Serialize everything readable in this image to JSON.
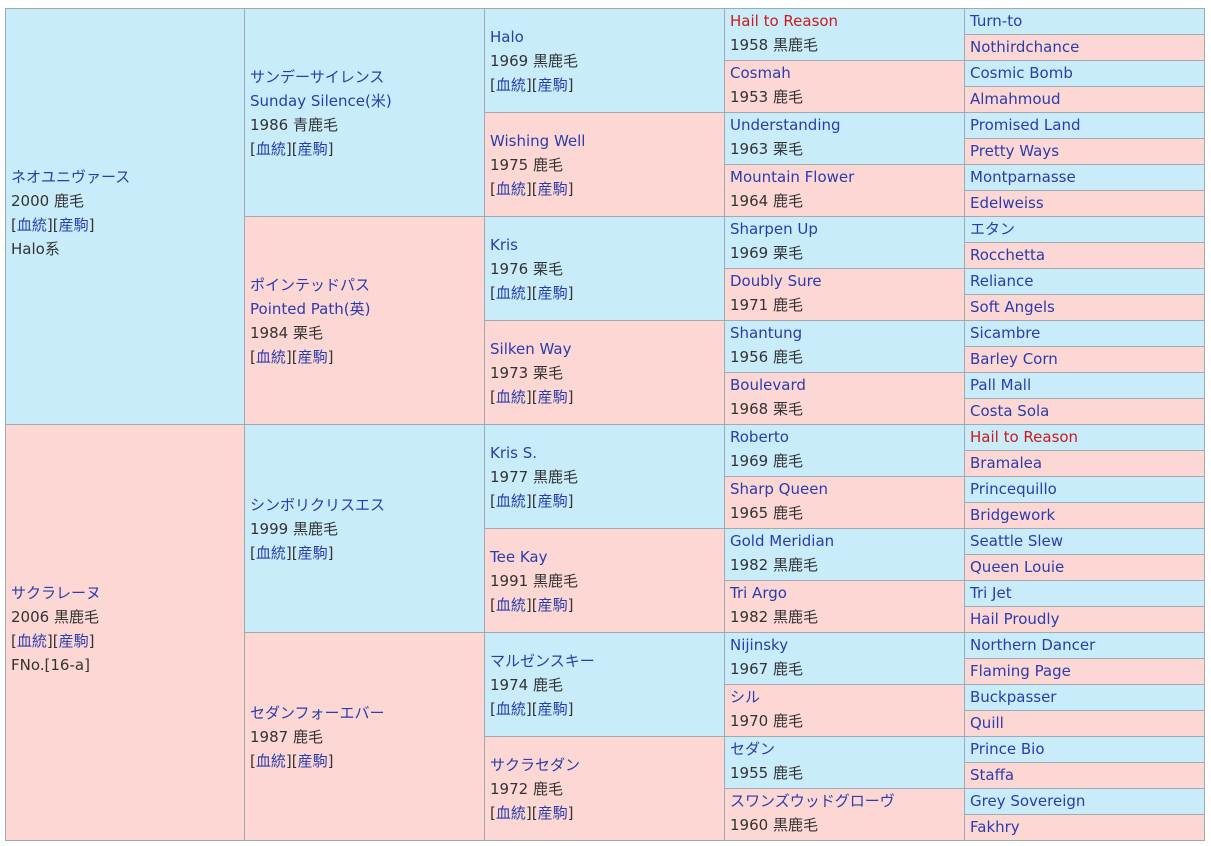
{
  "sire": {
    "name": "ネオユニヴァース",
    "birth": "2000 鹿毛",
    "link_bloodline": "血統",
    "link_offspring": "産駒",
    "line": "Halo系"
  },
  "dam": {
    "name": "サクラレーヌ",
    "birth": "2006 黒鹿毛",
    "link_bloodline": "血統",
    "link_offspring": "産駒",
    "family": "FNo.[16-a]"
  },
  "gen2": [
    {
      "name": "サンデーサイレンス",
      "name_en": "Sunday Silence(米)",
      "birth": "1986 青鹿毛",
      "link_bloodline": "血統",
      "link_offspring": "産駒"
    },
    {
      "name": "ポインテッドパス",
      "name_en": "Pointed Path(英)",
      "birth": "1984 栗毛",
      "link_bloodline": "血統",
      "link_offspring": "産駒"
    },
    {
      "name": "シンボリクリスエス",
      "birth": "1999 黒鹿毛",
      "link_bloodline": "血統",
      "link_offspring": "産駒"
    },
    {
      "name": "セダンフォーエバー",
      "birth": "1987 鹿毛",
      "link_bloodline": "血統",
      "link_offspring": "産駒"
    }
  ],
  "gen3": [
    {
      "name": "Halo",
      "birth": "1969 黒鹿毛",
      "link_bloodline": "血統",
      "link_offspring": "産駒"
    },
    {
      "name": "Wishing Well",
      "birth": "1975 鹿毛",
      "link_bloodline": "血統",
      "link_offspring": "産駒"
    },
    {
      "name": "Kris",
      "birth": "1976 栗毛",
      "link_bloodline": "血統",
      "link_offspring": "産駒"
    },
    {
      "name": "Silken Way",
      "birth": "1973 栗毛",
      "link_bloodline": "血統",
      "link_offspring": "産駒"
    },
    {
      "name": "Kris S.",
      "birth": "1977 黒鹿毛",
      "link_bloodline": "血統",
      "link_offspring": "産駒"
    },
    {
      "name": "Tee Kay",
      "birth": "1991 黒鹿毛",
      "link_bloodline": "血統",
      "link_offspring": "産駒"
    },
    {
      "name": "マルゼンスキー",
      "birth": "1974 鹿毛",
      "link_bloodline": "血統",
      "link_offspring": "産駒"
    },
    {
      "name": "サクラセダン",
      "birth": "1972 鹿毛",
      "link_bloodline": "血統",
      "link_offspring": "産駒"
    }
  ],
  "gen4": [
    {
      "name": "Hail to Reason",
      "birth": "1958 黒鹿毛",
      "highlight": true
    },
    {
      "name": "Cosmah",
      "birth": "1953 鹿毛"
    },
    {
      "name": "Understanding",
      "birth": "1963 栗毛"
    },
    {
      "name": "Mountain Flower",
      "birth": "1964 鹿毛"
    },
    {
      "name": "Sharpen Up",
      "birth": "1969 栗毛"
    },
    {
      "name": "Doubly Sure",
      "birth": "1971 鹿毛"
    },
    {
      "name": "Shantung",
      "birth": "1956 鹿毛"
    },
    {
      "name": "Boulevard",
      "birth": "1968 栗毛"
    },
    {
      "name": "Roberto",
      "birth": "1969 鹿毛"
    },
    {
      "name": "Sharp Queen",
      "birth": "1965 鹿毛"
    },
    {
      "name": "Gold Meridian",
      "birth": "1982 黒鹿毛"
    },
    {
      "name": "Tri Argo",
      "birth": "1982 黒鹿毛"
    },
    {
      "name": "Nijinsky",
      "birth": "1967 鹿毛"
    },
    {
      "name": "シル",
      "birth": "1970 鹿毛"
    },
    {
      "name": "セダン",
      "birth": "1955 鹿毛"
    },
    {
      "name": "スワンズウッドグローヴ",
      "birth": "1960 黒鹿毛"
    }
  ],
  "gen5": [
    {
      "name": "Turn-to"
    },
    {
      "name": "Nothirdchance"
    },
    {
      "name": "Cosmic Bomb"
    },
    {
      "name": "Almahmoud"
    },
    {
      "name": "Promised Land"
    },
    {
      "name": "Pretty Ways"
    },
    {
      "name": "Montparnasse"
    },
    {
      "name": "Edelweiss"
    },
    {
      "name": "エタン"
    },
    {
      "name": "Rocchetta"
    },
    {
      "name": "Reliance"
    },
    {
      "name": "Soft Angels"
    },
    {
      "name": "Sicambre"
    },
    {
      "name": "Barley Corn"
    },
    {
      "name": "Pall Mall"
    },
    {
      "name": "Costa Sola"
    },
    {
      "name": "Hail to Reason",
      "highlight": true
    },
    {
      "name": "Bramalea"
    },
    {
      "name": "Princequillo"
    },
    {
      "name": "Bridgework"
    },
    {
      "name": "Seattle Slew"
    },
    {
      "name": "Queen Louie"
    },
    {
      "name": "Tri Jet"
    },
    {
      "name": "Hail Proudly"
    },
    {
      "name": "Northern Dancer"
    },
    {
      "name": "Flaming Page"
    },
    {
      "name": "Buckpasser"
    },
    {
      "name": "Quill"
    },
    {
      "name": "Prince Bio"
    },
    {
      "name": "Staffa"
    },
    {
      "name": "Grey Sovereign"
    },
    {
      "name": "Fakhry"
    }
  ],
  "colors": {
    "male_bg": "#c9ecfa",
    "female_bg": "#fcd7d3",
    "link": "#2a3cae",
    "highlight": "#cc1a1a",
    "border": "#a2a9b1"
  }
}
